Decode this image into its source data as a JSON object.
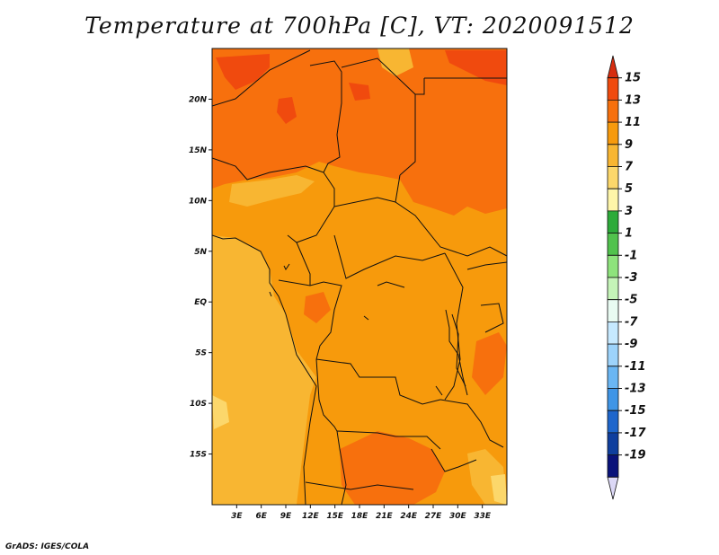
{
  "title": "Temperature at 700hPa [C], VT: 2020091512",
  "credit": "GrADS: IGES/COLA",
  "map": {
    "lon_range": [
      0,
      36
    ],
    "lat_range": [
      -20,
      25
    ],
    "lon_ticks": [
      "3E",
      "6E",
      "9E",
      "12E",
      "15E",
      "18E",
      "21E",
      "24E",
      "27E",
      "30E",
      "33E"
    ],
    "lat_ticks": [
      "20N",
      "15N",
      "10N",
      "5N",
      "EQ",
      "5S",
      "10S",
      "15S"
    ]
  },
  "colorbar": {
    "labels": [
      "15",
      "13",
      "11",
      "9",
      "7",
      "5",
      "3",
      "1",
      "-1",
      "-3",
      "-5",
      "-7",
      "-9",
      "-11",
      "-13",
      "-15",
      "-17",
      "-19"
    ],
    "colors": [
      "#d62d10",
      "#f04a0e",
      "#f7700d",
      "#f79a0c",
      "#f8b632",
      "#fcd76b",
      "#fef5a9",
      "#2dab3a",
      "#51c24d",
      "#8ee37c",
      "#c5f4b8",
      "#e9fbf2",
      "#c6e9ff",
      "#9dd3fb",
      "#6ab6f3",
      "#3f95e6",
      "#1e66cc",
      "#0f3f9e",
      "#09127a",
      "#dcd8f6"
    ]
  }
}
